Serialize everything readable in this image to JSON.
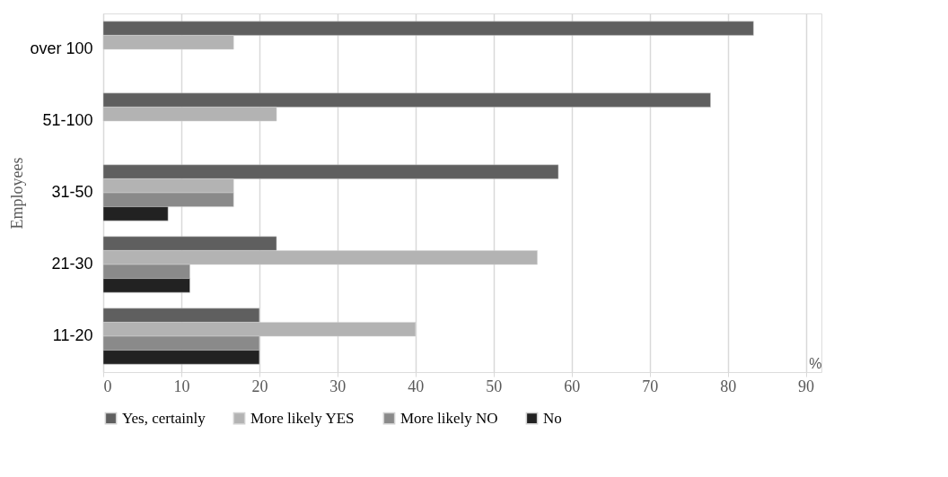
{
  "chart_data": {
    "type": "bar",
    "orientation": "horizontal",
    "xlabel": "%",
    "ylabel": "Employees",
    "categories": [
      "over 100",
      "51-100",
      "31-50",
      "21-30",
      "11-20"
    ],
    "series": [
      {
        "name": "Yes, certainly",
        "color": "#5f5f5f",
        "values": [
          83.3,
          77.8,
          58.3,
          22.2,
          20
        ]
      },
      {
        "name": "More likely YES",
        "color": "#b3b3b3",
        "values": [
          16.7,
          22.2,
          16.7,
          55.6,
          40
        ]
      },
      {
        "name": "More likely NO",
        "color": "#8a8a8a",
        "values": [
          null,
          null,
          16.7,
          11.1,
          20
        ]
      },
      {
        "name": "No",
        "color": "#222222",
        "values": [
          null,
          null,
          8.3,
          11.1,
          20
        ]
      }
    ],
    "xlim": [
      0,
      92
    ],
    "xticks": [
      0,
      10,
      20,
      30,
      40,
      50,
      60,
      70,
      80,
      90
    ],
    "grid": "x",
    "legend": "bottom"
  }
}
